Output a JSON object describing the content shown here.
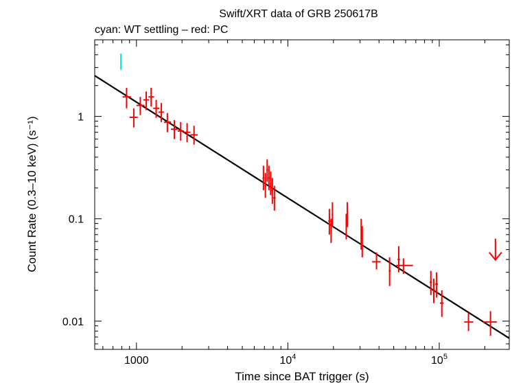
{
  "chart_data": {
    "type": "scatter",
    "title": "Swift/XRT data of GRB 250617B",
    "subtitle": "cyan: WT settling – red: PC",
    "xlabel": "Time since BAT trigger (s)",
    "ylabel": "Count Rate (0.3–10 keV) (s⁻¹)",
    "xscale": "log",
    "yscale": "log",
    "xlim": [
      530,
      290000
    ],
    "ylim": [
      0.0053,
      5.6
    ],
    "x_ticks": [
      {
        "value": 1000,
        "label": "1000"
      },
      {
        "value": 10000,
        "label": "10",
        "exp": "4"
      },
      {
        "value": 100000,
        "label": "10",
        "exp": "5"
      }
    ],
    "y_ticks": [
      {
        "value": 1,
        "label": "1"
      },
      {
        "value": 0.1,
        "label": "0.1"
      },
      {
        "value": 0.01,
        "label": "0.01"
      }
    ],
    "colors": {
      "wt": "#00e5ee",
      "pc": "#ff0000",
      "model": "#000000",
      "axis": "#000000"
    },
    "wt_settling": [
      {
        "x": 790,
        "y": 3.4,
        "ylo": 2.85,
        "yhi": 4.1
      }
    ],
    "pc_points": [
      {
        "x": 860,
        "xlo": 810,
        "xhi": 920,
        "y": 1.55,
        "ylo": 1.2,
        "yhi": 1.9
      },
      {
        "x": 960,
        "xlo": 900,
        "xhi": 1020,
        "y": 0.98,
        "ylo": 0.78,
        "yhi": 1.2
      },
      {
        "x": 1060,
        "xlo": 1000,
        "xhi": 1130,
        "y": 1.28,
        "ylo": 1.03,
        "yhi": 1.55
      },
      {
        "x": 1160,
        "xlo": 1110,
        "xhi": 1210,
        "y": 1.45,
        "ylo": 1.15,
        "yhi": 1.75
      },
      {
        "x": 1250,
        "xlo": 1200,
        "xhi": 1310,
        "y": 1.55,
        "ylo": 1.25,
        "yhi": 1.9
      },
      {
        "x": 1350,
        "xlo": 1290,
        "xhi": 1420,
        "y": 1.2,
        "ylo": 0.97,
        "yhi": 1.45
      },
      {
        "x": 1460,
        "xlo": 1400,
        "xhi": 1520,
        "y": 1.1,
        "ylo": 0.88,
        "yhi": 1.35
      },
      {
        "x": 1600,
        "xlo": 1520,
        "xhi": 1690,
        "y": 0.88,
        "ylo": 0.7,
        "yhi": 1.08
      },
      {
        "x": 1780,
        "xlo": 1690,
        "xhi": 1870,
        "y": 0.75,
        "ylo": 0.6,
        "yhi": 0.92
      },
      {
        "x": 1960,
        "xlo": 1870,
        "xhi": 2060,
        "y": 0.72,
        "ylo": 0.58,
        "yhi": 0.88
      },
      {
        "x": 2160,
        "xlo": 2060,
        "xhi": 2270,
        "y": 0.7,
        "ylo": 0.56,
        "yhi": 0.86
      },
      {
        "x": 2400,
        "xlo": 2270,
        "xhi": 2540,
        "y": 0.66,
        "ylo": 0.53,
        "yhi": 0.81
      },
      {
        "x": 6900,
        "xlo": 6800,
        "xhi": 7000,
        "y": 0.25,
        "ylo": 0.19,
        "yhi": 0.33
      },
      {
        "x": 7100,
        "xlo": 7000,
        "xhi": 7200,
        "y": 0.21,
        "ylo": 0.16,
        "yhi": 0.28
      },
      {
        "x": 7300,
        "xlo": 7200,
        "xhi": 7400,
        "y": 0.3,
        "ylo": 0.23,
        "yhi": 0.38
      },
      {
        "x": 7500,
        "xlo": 7400,
        "xhi": 7600,
        "y": 0.25,
        "ylo": 0.19,
        "yhi": 0.33
      },
      {
        "x": 7700,
        "xlo": 7600,
        "xhi": 7800,
        "y": 0.22,
        "ylo": 0.17,
        "yhi": 0.29
      },
      {
        "x": 7900,
        "xlo": 7800,
        "xhi": 8000,
        "y": 0.19,
        "ylo": 0.14,
        "yhi": 0.25
      },
      {
        "x": 8150,
        "xlo": 8000,
        "xhi": 8300,
        "y": 0.16,
        "ylo": 0.12,
        "yhi": 0.21
      },
      {
        "x": 18800,
        "xlo": 18500,
        "xhi": 19100,
        "y": 0.095,
        "ylo": 0.07,
        "yhi": 0.125
      },
      {
        "x": 19300,
        "xlo": 19100,
        "xhi": 19500,
        "y": 0.078,
        "ylo": 0.058,
        "yhi": 0.1
      },
      {
        "x": 19700,
        "xlo": 19500,
        "xhi": 19900,
        "y": 0.11,
        "ylo": 0.083,
        "yhi": 0.145
      },
      {
        "x": 24300,
        "xlo": 24100,
        "xhi": 24500,
        "y": 0.085,
        "ylo": 0.063,
        "yhi": 0.112
      },
      {
        "x": 24700,
        "xlo": 24500,
        "xhi": 24900,
        "y": 0.11,
        "ylo": 0.083,
        "yhi": 0.145
      },
      {
        "x": 30500,
        "xlo": 30300,
        "xhi": 30700,
        "y": 0.072,
        "ylo": 0.05,
        "yhi": 0.1
      },
      {
        "x": 31000,
        "xlo": 30800,
        "xhi": 31200,
        "y": 0.06,
        "ylo": 0.042,
        "yhi": 0.085
      },
      {
        "x": 38500,
        "xlo": 36000,
        "xhi": 41000,
        "y": 0.038,
        "ylo": 0.032,
        "yhi": 0.047
      },
      {
        "x": 47000,
        "xlo": 46300,
        "xhi": 47700,
        "y": 0.031,
        "ylo": 0.022,
        "yhi": 0.042
      },
      {
        "x": 54000,
        "xlo": 53000,
        "xhi": 55000,
        "y": 0.04,
        "ylo": 0.03,
        "yhi": 0.054
      },
      {
        "x": 58000,
        "xlo": 52000,
        "xhi": 67000,
        "y": 0.035,
        "ylo": 0.029,
        "yhi": 0.041
      },
      {
        "x": 88000,
        "xlo": 86500,
        "xhi": 89500,
        "y": 0.024,
        "ylo": 0.018,
        "yhi": 0.031
      },
      {
        "x": 92000,
        "xlo": 90000,
        "xhi": 94000,
        "y": 0.02,
        "ylo": 0.015,
        "yhi": 0.026
      },
      {
        "x": 96000,
        "xlo": 94000,
        "xhi": 98000,
        "y": 0.023,
        "ylo": 0.017,
        "yhi": 0.03
      },
      {
        "x": 104000,
        "xlo": 101000,
        "xhi": 107000,
        "y": 0.015,
        "ylo": 0.011,
        "yhi": 0.02
      },
      {
        "x": 156000,
        "xlo": 146000,
        "xhi": 168000,
        "y": 0.0098,
        "ylo": 0.008,
        "yhi": 0.012
      },
      {
        "x": 218000,
        "xlo": 195000,
        "xhi": 240000,
        "y": 0.0098,
        "ylo": 0.0072,
        "yhi": 0.0125
      }
    ],
    "upper_limits": [
      {
        "x": 235000,
        "y": 0.05
      }
    ],
    "model_line": {
      "type": "power-law",
      "points": [
        [
          530,
          2.5
        ],
        [
          290000,
          0.0068
        ]
      ]
    }
  }
}
